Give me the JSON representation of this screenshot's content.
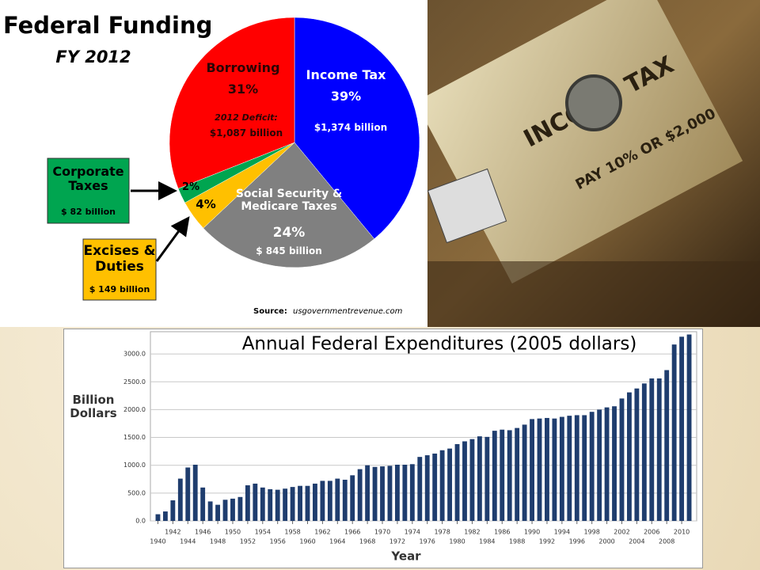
{
  "chart_data": [
    {
      "type": "pie",
      "title": "Federal Funding",
      "subtitle": "FY 2012",
      "categories": [
        "Income Tax",
        "Social Security & Medicare Taxes",
        "Excises & Duties",
        "Corporate Taxes",
        "Borrowing"
      ],
      "values": [
        39,
        24,
        4,
        2,
        31
      ],
      "value_labels": [
        "39%",
        "24%",
        "4%",
        "2%",
        "31%"
      ],
      "amount_labels": [
        "$1,374 billion",
        "$ 845 billion",
        "$ 149 billion",
        "$ 82 billion",
        "$1,087 billion"
      ],
      "colors": [
        "#0000ff",
        "#808080",
        "#ffc000",
        "#00a550",
        "#ff0000"
      ],
      "annotation": "2012 Deficit:",
      "source_label": "Source:",
      "source": "usgovernmentrevenue.com"
    },
    {
      "type": "bar",
      "title": "Annual Federal Expenditures (2005 dollars)",
      "x_label": "Year",
      "y_label": "Billion Dollars",
      "color": "#1f3d6e",
      "grid": true,
      "x": [
        1940,
        1941,
        1942,
        1943,
        1944,
        1945,
        1946,
        1947,
        1948,
        1949,
        1950,
        1951,
        1952,
        1953,
        1954,
        1955,
        1956,
        1957,
        1958,
        1959,
        1960,
        1961,
        1962,
        1963,
        1964,
        1965,
        1966,
        1967,
        1968,
        1969,
        1970,
        1971,
        1972,
        1973,
        1974,
        1975,
        1976,
        1977,
        1978,
        1979,
        1980,
        1981,
        1982,
        1983,
        1984,
        1985,
        1986,
        1987,
        1988,
        1989,
        1990,
        1991,
        1992,
        1993,
        1994,
        1995,
        1996,
        1997,
        1998,
        1999,
        2000,
        2001,
        2002,
        2003,
        2004,
        2005,
        2006,
        2007,
        2008,
        2009,
        2010,
        2011
      ],
      "values": [
        120,
        170,
        370,
        760,
        960,
        1010,
        600,
        350,
        290,
        380,
        400,
        430,
        640,
        670,
        600,
        570,
        560,
        580,
        610,
        630,
        630,
        670,
        720,
        720,
        760,
        740,
        820,
        930,
        1000,
        970,
        980,
        990,
        1010,
        1010,
        1020,
        1150,
        1180,
        1210,
        1270,
        1300,
        1380,
        1430,
        1470,
        1520,
        1510,
        1620,
        1640,
        1630,
        1670,
        1730,
        1830,
        1840,
        1850,
        1840,
        1870,
        1890,
        1900,
        1900,
        1960,
        2000,
        2040,
        2060,
        2200,
        2310,
        2380,
        2470,
        2560,
        2560,
        2710,
        3170,
        3310,
        3350
      ],
      "xlim": [
        1939,
        2012
      ],
      "xticks": [
        1940,
        1942,
        1944,
        1946,
        1948,
        1950,
        1952,
        1954,
        1956,
        1958,
        1960,
        1962,
        1964,
        1966,
        1968,
        1970,
        1972,
        1974,
        1976,
        1978,
        1980,
        1982,
        1984,
        1986,
        1988,
        1990,
        1992,
        1994,
        1996,
        1998,
        2000,
        2002,
        2004,
        2006,
        2008,
        2010
      ],
      "ylim": [
        0,
        3400
      ],
      "yticks": [
        {
          "value": 0,
          "label": "0.0"
        },
        {
          "value": 500,
          "label": "500.0"
        },
        {
          "value": 1000,
          "label": "1000.0"
        },
        {
          "value": 1500,
          "label": "1500.0"
        },
        {
          "value": 2000,
          "label": "2000.0"
        },
        {
          "value": 2500,
          "label": "2500.0"
        },
        {
          "value": 3000,
          "label": "3000.0"
        }
      ]
    }
  ],
  "photo": {
    "texts": [
      "INCOME TAX",
      "PAY 10% OR $2,000"
    ]
  }
}
